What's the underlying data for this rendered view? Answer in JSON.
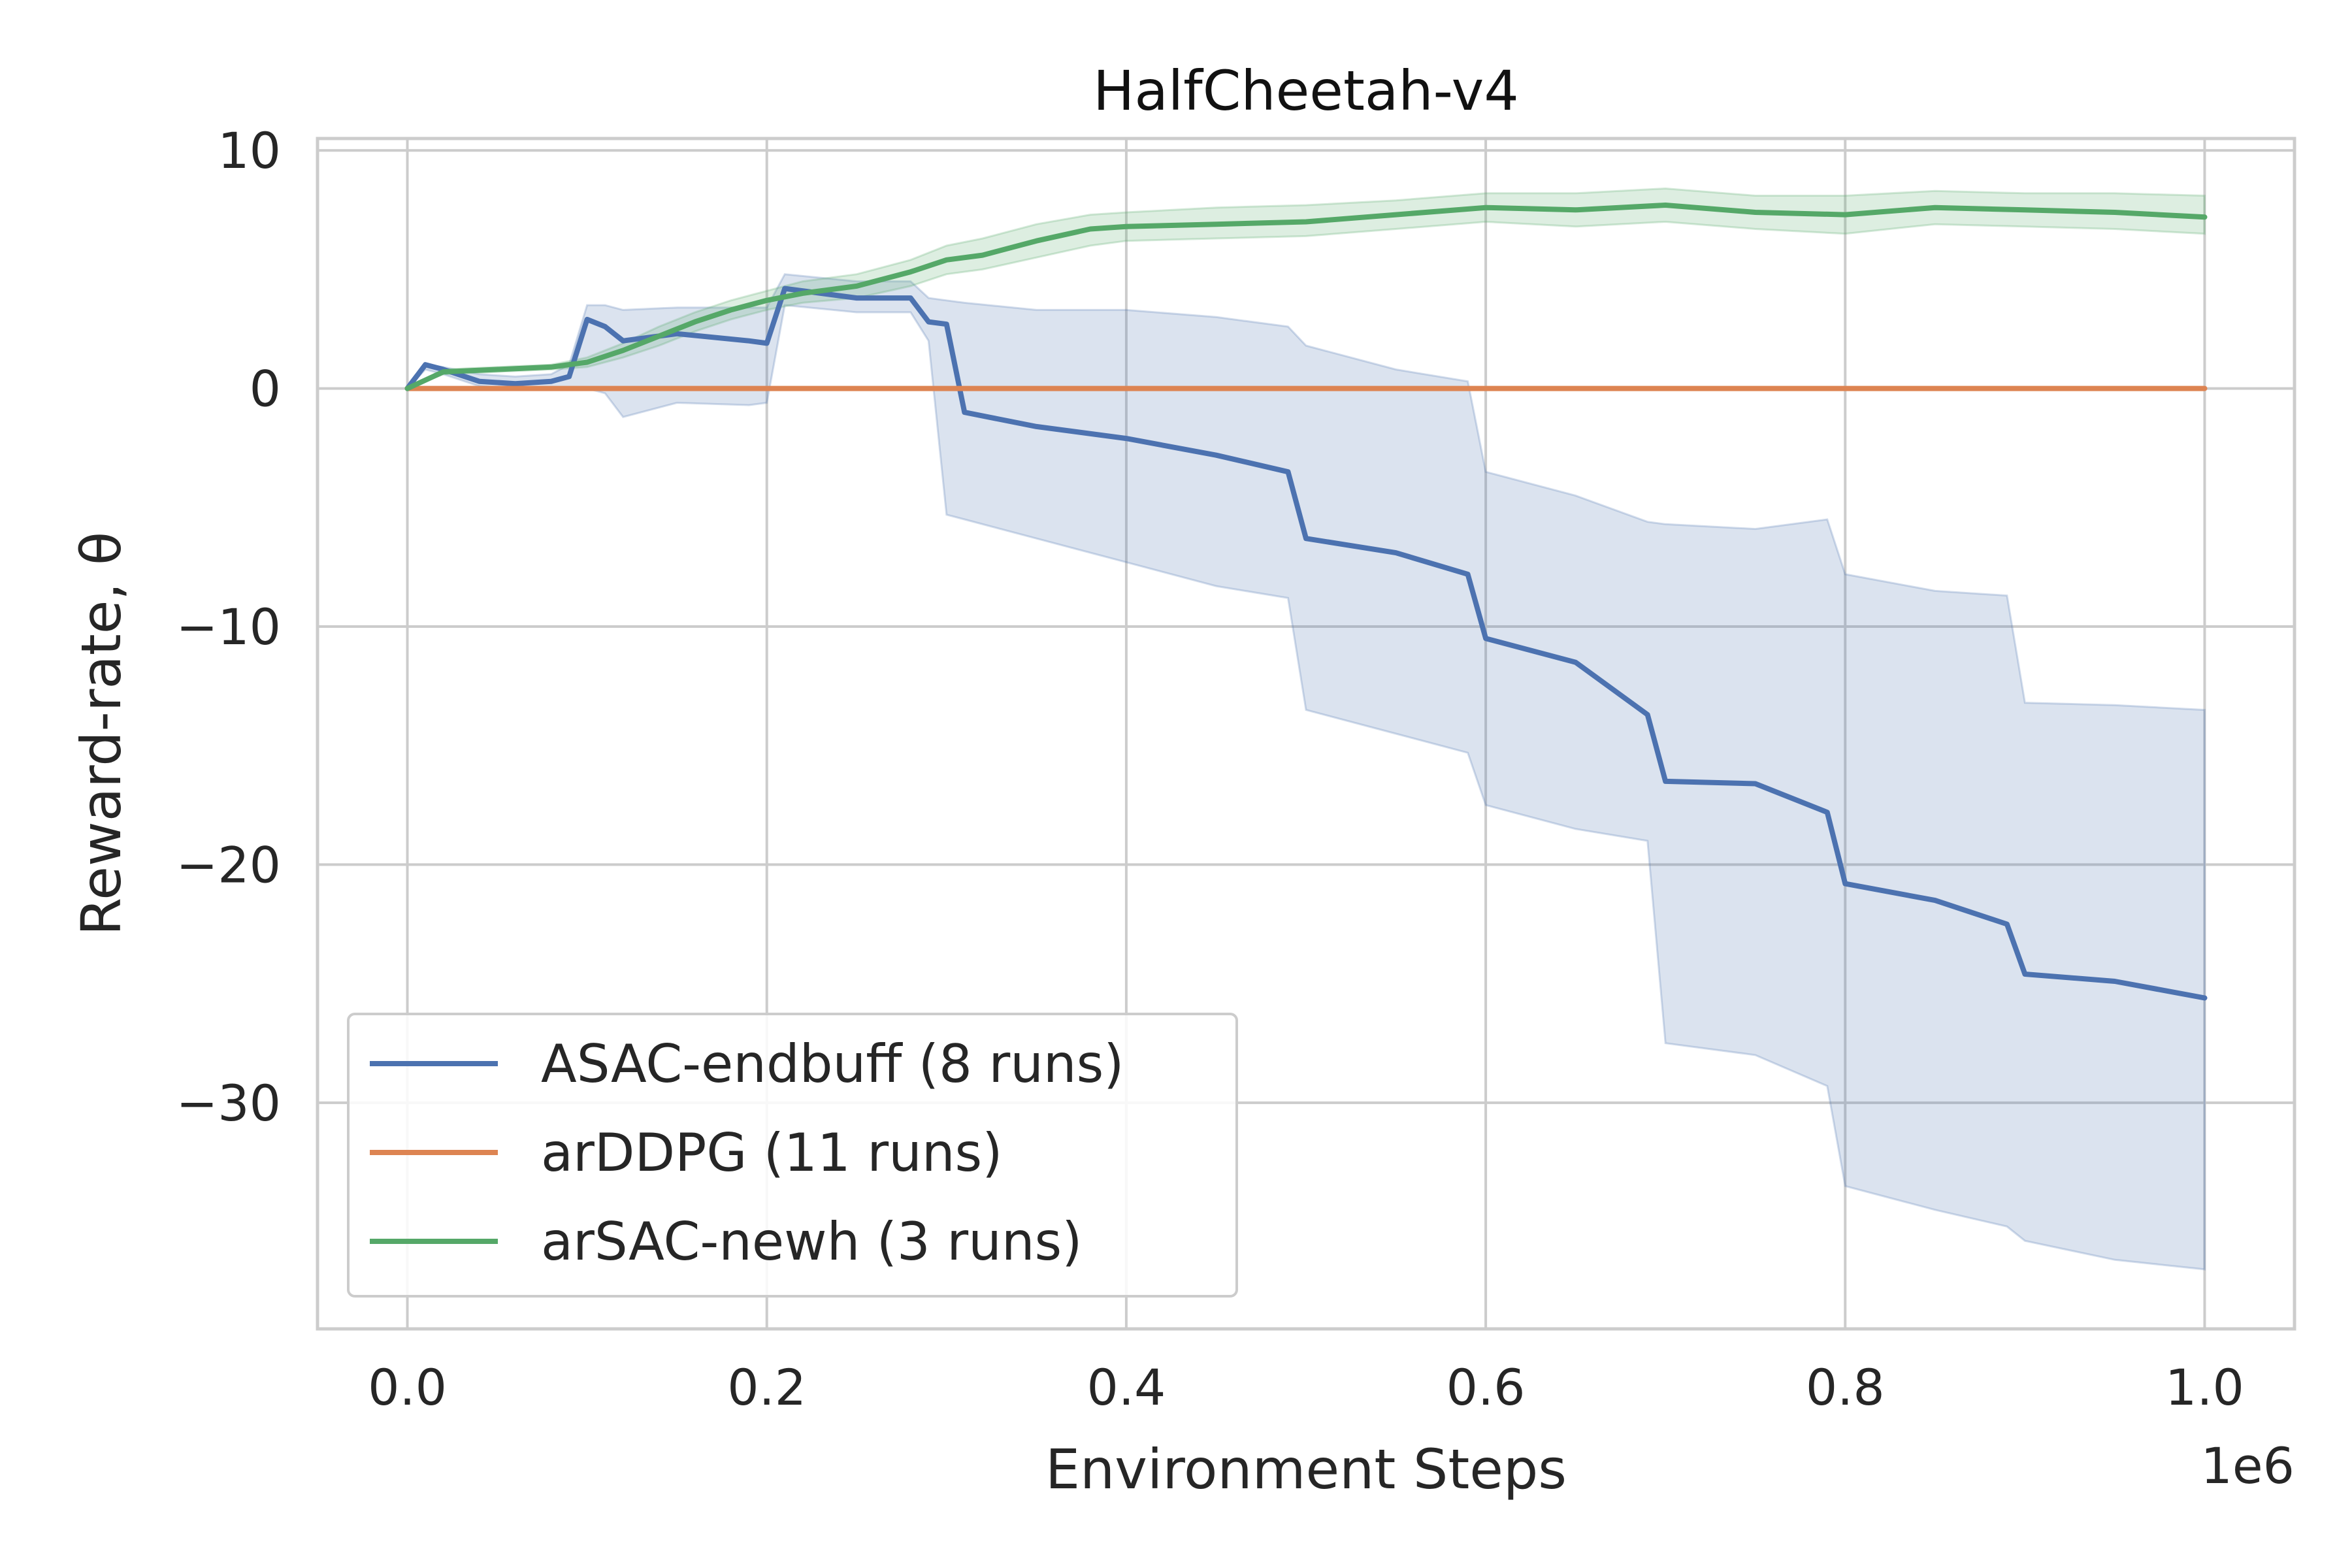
{
  "chart_data": {
    "type": "line",
    "title": "HalfCheetah-v4",
    "xlabel": "Environment Steps",
    "ylabel": "Reward-rate, θ",
    "x_offset_label": "1e6",
    "xlim": [
      -0.05,
      1.05
    ],
    "ylim": [
      -39.5,
      10.5
    ],
    "xticks": [
      0.0,
      0.2,
      0.4,
      0.6,
      0.8,
      1.0
    ],
    "xtick_labels": [
      "0.0",
      "0.2",
      "0.4",
      "0.6",
      "0.8",
      "1.0"
    ],
    "yticks": [
      10,
      0,
      -10,
      -20,
      -30
    ],
    "ytick_labels": [
      "10",
      "0",
      "−10",
      "−20",
      "−30"
    ],
    "grid": true,
    "legend_position": "lower-left",
    "series": [
      {
        "name": "ASAC-endbuff (8 runs)",
        "color": "#4c72b0",
        "x": [
          0.0,
          0.01,
          0.02,
          0.04,
          0.06,
          0.08,
          0.09,
          0.1,
          0.11,
          0.12,
          0.15,
          0.19,
          0.2,
          0.21,
          0.25,
          0.28,
          0.29,
          0.3,
          0.31,
          0.35,
          0.4,
          0.45,
          0.49,
          0.5,
          0.55,
          0.59,
          0.6,
          0.65,
          0.69,
          0.7,
          0.75,
          0.79,
          0.8,
          0.85,
          0.89,
          0.9,
          0.95,
          1.0
        ],
        "y": [
          0.0,
          1.0,
          0.8,
          0.3,
          0.2,
          0.3,
          0.5,
          2.9,
          2.6,
          2.0,
          2.3,
          2.0,
          1.9,
          4.2,
          3.8,
          3.8,
          2.8,
          2.7,
          -1.0,
          -1.6,
          -2.1,
          -2.8,
          -3.5,
          -6.3,
          -6.9,
          -7.8,
          -10.5,
          -11.5,
          -13.7,
          -16.5,
          -16.6,
          -17.8,
          -20.8,
          -21.5,
          -22.5,
          -24.6,
          -24.9,
          -25.6
        ],
        "band_upper": [
          0.0,
          1.0,
          0.9,
          0.6,
          0.5,
          0.6,
          1.0,
          3.5,
          3.5,
          3.3,
          3.4,
          3.4,
          3.4,
          4.8,
          4.5,
          4.5,
          3.8,
          3.7,
          3.6,
          3.3,
          3.3,
          3.0,
          2.6,
          1.8,
          0.8,
          0.3,
          -3.5,
          -4.5,
          -5.6,
          -5.7,
          -5.9,
          -5.5,
          -7.8,
          -8.5,
          -8.7,
          -13.2,
          -13.3,
          -13.5
        ],
        "band_lower": [
          0.0,
          0.8,
          0.6,
          0.1,
          0.0,
          0.0,
          0.0,
          0.0,
          -0.2,
          -1.2,
          -0.6,
          -0.7,
          -0.6,
          3.5,
          3.2,
          3.2,
          2.0,
          -5.3,
          -5.5,
          -6.3,
          -7.3,
          -8.3,
          -8.8,
          -13.5,
          -14.5,
          -15.3,
          -17.5,
          -18.5,
          -19.0,
          -27.5,
          -28.0,
          -29.3,
          -33.5,
          -34.5,
          -35.2,
          -35.8,
          -36.6,
          -37.0
        ]
      },
      {
        "name": "arDDPG (11 runs)",
        "color": "#dd8452",
        "x": [
          0.0,
          1.0
        ],
        "y": [
          0.0,
          0.0
        ]
      },
      {
        "name": "arSAC-newh (3 runs)",
        "color": "#55a868",
        "x": [
          0.0,
          0.02,
          0.05,
          0.08,
          0.1,
          0.12,
          0.14,
          0.16,
          0.18,
          0.2,
          0.22,
          0.25,
          0.28,
          0.3,
          0.32,
          0.35,
          0.38,
          0.4,
          0.45,
          0.5,
          0.55,
          0.6,
          0.65,
          0.7,
          0.75,
          0.8,
          0.85,
          0.9,
          0.95,
          1.0
        ],
        "y": [
          0.0,
          0.7,
          0.8,
          0.9,
          1.1,
          1.6,
          2.2,
          2.8,
          3.3,
          3.7,
          4.0,
          4.3,
          4.9,
          5.4,
          5.6,
          6.2,
          6.7,
          6.8,
          6.9,
          7.0,
          7.3,
          7.6,
          7.5,
          7.7,
          7.4,
          7.3,
          7.6,
          7.5,
          7.4,
          7.2
        ],
        "band_upper": [
          0.0,
          0.8,
          0.9,
          1.0,
          1.3,
          1.9,
          2.6,
          3.2,
          3.7,
          4.1,
          4.5,
          4.8,
          5.4,
          6.0,
          6.3,
          6.9,
          7.3,
          7.4,
          7.6,
          7.7,
          7.9,
          8.2,
          8.2,
          8.4,
          8.1,
          8.1,
          8.3,
          8.2,
          8.2,
          8.1
        ],
        "band_lower": [
          0.0,
          0.6,
          0.7,
          0.8,
          0.9,
          1.3,
          1.8,
          2.4,
          2.9,
          3.3,
          3.6,
          3.8,
          4.3,
          4.8,
          5.0,
          5.5,
          6.0,
          6.2,
          6.3,
          6.4,
          6.7,
          7.0,
          6.8,
          7.0,
          6.7,
          6.5,
          6.9,
          6.8,
          6.7,
          6.5
        ]
      }
    ]
  }
}
